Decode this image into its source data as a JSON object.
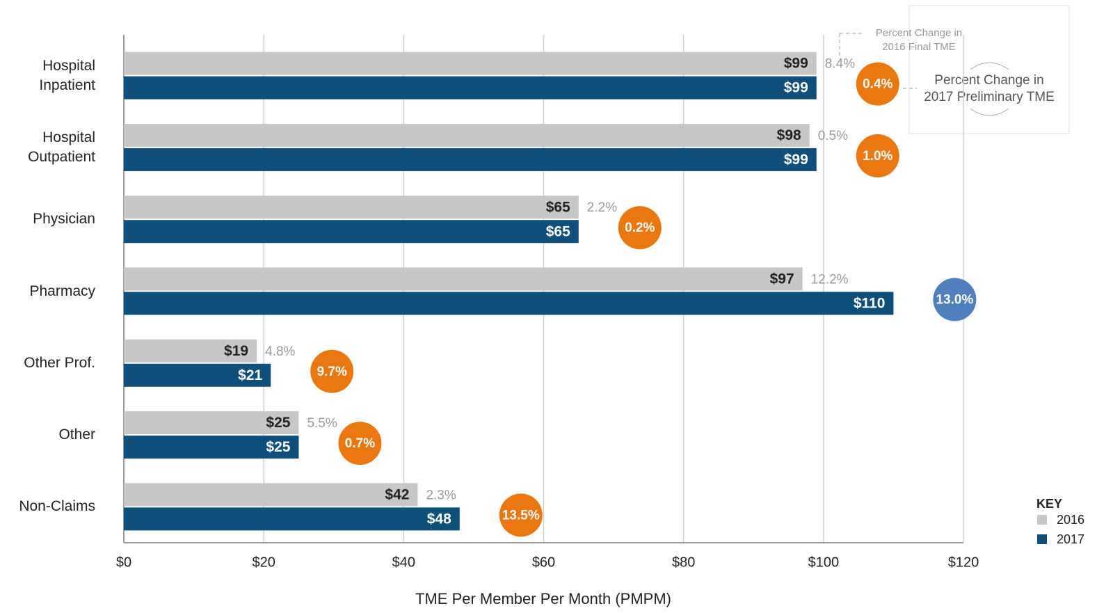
{
  "chart_data": {
    "type": "bar",
    "orientation": "horizontal",
    "categories": [
      "Hospital Inpatient",
      "Hospital Outpatient",
      "Physician",
      "Pharmacy",
      "Other Prof.",
      "Other",
      "Non-Claims"
    ],
    "series": [
      {
        "name": "2016",
        "color": "#c8c7c7",
        "label_color": "#222222",
        "values": [
          99,
          98,
          65,
          97,
          19,
          25,
          42
        ],
        "value_labels": [
          "$99",
          "$98",
          "$65",
          "$97",
          "$19",
          "$25",
          "$42"
        ]
      },
      {
        "name": "2017",
        "color": "#0e4f7c",
        "label_color": "#ffffff",
        "values": [
          99,
          99,
          65,
          110,
          21,
          25,
          48
        ],
        "value_labels": [
          "$99",
          "$99",
          "$65",
          "$110",
          "$21",
          "$25",
          "$48"
        ]
      }
    ],
    "percent_change_2016": {
      "color": "#9a9a9a",
      "values": [
        8.4,
        0.5,
        2.2,
        12.2,
        4.8,
        5.5,
        2.3
      ],
      "value_labels": [
        "8.4%",
        "0.5%",
        "2.2%",
        "12.2%",
        "4.8%",
        "5.5%",
        "2.3%"
      ]
    },
    "percent_change_2017": {
      "colors": [
        "#ea770f",
        "#ea770f",
        "#ea770f",
        "#4f7fbd",
        "#ea770f",
        "#ea770f",
        "#ea770f"
      ],
      "values": [
        0.4,
        1.0,
        0.2,
        13.0,
        9.7,
        0.7,
        13.5
      ],
      "value_labels": [
        "0.4%",
        "1.0%",
        "0.2%",
        "13.0%",
        "9.7%",
        "0.7%",
        "13.5%"
      ]
    },
    "xlabel": "TME Per Member Per Month (PMPM)",
    "xlim": [
      0,
      120
    ],
    "xticks": [
      {
        "value": 0,
        "label": "$0"
      },
      {
        "value": 20,
        "label": "$20"
      },
      {
        "value": 40,
        "label": "$40"
      },
      {
        "value": 60,
        "label": "$60"
      },
      {
        "value": 80,
        "label": "$80"
      },
      {
        "value": 100,
        "label": "$100"
      },
      {
        "value": 120,
        "label": "$120"
      }
    ],
    "grid": true,
    "legend": {
      "title": "KEY",
      "position": "lower right"
    },
    "annotation_2016": [
      "Percent Change in",
      "2016 Final TME"
    ],
    "annotation_2017": [
      "Percent Change in",
      "2017 Preliminary TME"
    ]
  }
}
